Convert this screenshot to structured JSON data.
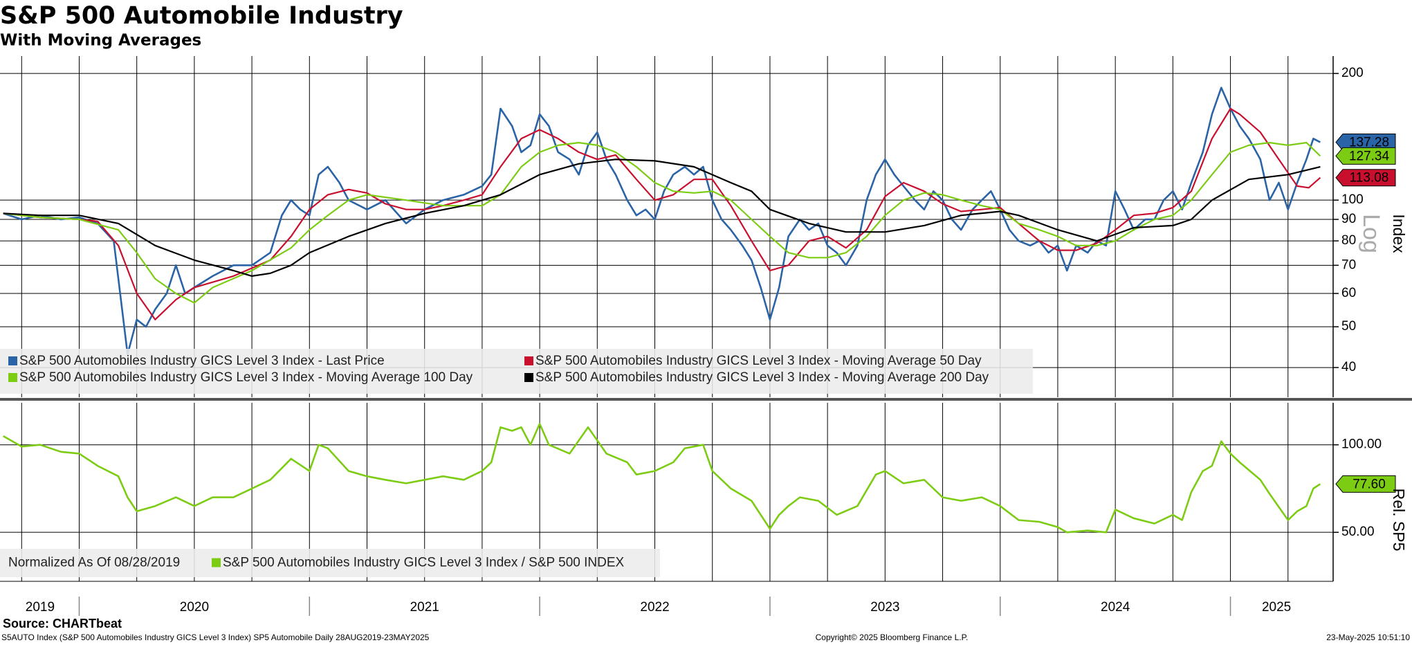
{
  "chart_data": [
    {
      "type": "line",
      "title": "S&P 500 Automobile Industry",
      "subtitle": "With Moving Averages",
      "y_label": "Index",
      "scale_label": "Log",
      "log_scale": true,
      "grid": true,
      "xlim": [
        2019.656,
        2025.446
      ],
      "x_grid": [
        2019.75,
        2020,
        2020.25,
        2020.5,
        2020.75,
        2021,
        2021.25,
        2021.5,
        2021.75,
        2022,
        2022.25,
        2022.5,
        2022.75,
        2023,
        2023.25,
        2023.5,
        2023.75,
        2024,
        2024.25,
        2024.5,
        2024.75,
        2025,
        2025.25
      ],
      "ylim": [
        34,
        220
      ],
      "yticks": [
        40,
        50,
        60,
        70,
        80,
        90,
        100,
        200
      ],
      "series": [
        {
          "name": "S&P 500 Automobiles Industry GICS Level 3 Index - Last Price",
          "color": "#2a64a6",
          "last_label": "137.28",
          "tag_text": "#ffffff",
          "x": [
            2019.67,
            2019.75,
            2019.83,
            2019.92,
            2020.0,
            2020.08,
            2020.15,
            2020.17,
            2020.21,
            2020.25,
            2020.29,
            2020.33,
            2020.38,
            2020.42,
            2020.46,
            2020.5,
            2020.58,
            2020.67,
            2020.75,
            2020.83,
            2020.88,
            2020.92,
            2020.96,
            2021.0,
            2021.04,
            2021.08,
            2021.13,
            2021.17,
            2021.25,
            2021.33,
            2021.42,
            2021.5,
            2021.58,
            2021.67,
            2021.75,
            2021.79,
            2021.83,
            2021.88,
            2021.92,
            2021.96,
            2022.0,
            2022.04,
            2022.08,
            2022.13,
            2022.17,
            2022.21,
            2022.25,
            2022.29,
            2022.33,
            2022.38,
            2022.42,
            2022.46,
            2022.5,
            2022.54,
            2022.58,
            2022.63,
            2022.67,
            2022.71,
            2022.75,
            2022.79,
            2022.83,
            2022.88,
            2022.92,
            2022.96,
            2023.0,
            2023.04,
            2023.08,
            2023.13,
            2023.17,
            2023.21,
            2023.25,
            2023.29,
            2023.33,
            2023.38,
            2023.42,
            2023.46,
            2023.5,
            2023.54,
            2023.58,
            2023.63,
            2023.67,
            2023.71,
            2023.75,
            2023.79,
            2023.83,
            2023.88,
            2023.92,
            2023.96,
            2024.0,
            2024.04,
            2024.08,
            2024.13,
            2024.17,
            2024.21,
            2024.25,
            2024.29,
            2024.33,
            2024.38,
            2024.42,
            2024.46,
            2024.5,
            2024.54,
            2024.58,
            2024.63,
            2024.67,
            2024.71,
            2024.75,
            2024.79,
            2024.83,
            2024.88,
            2024.92,
            2024.96,
            2025.0,
            2025.04,
            2025.08,
            2025.13,
            2025.17,
            2025.21,
            2025.25,
            2025.29,
            2025.33,
            2025.36,
            2025.39
          ],
          "values": [
            93,
            90,
            92,
            90,
            91,
            88,
            80,
            65,
            43,
            52,
            50,
            55,
            60,
            70,
            60,
            62,
            66,
            70,
            70,
            75,
            92,
            100,
            95,
            92,
            115,
            120,
            110,
            100,
            95,
            100,
            88,
            95,
            100,
            103,
            108,
            115,
            165,
            150,
            130,
            135,
            160,
            150,
            130,
            125,
            115,
            135,
            145,
            125,
            115,
            100,
            92,
            95,
            90,
            105,
            115,
            120,
            115,
            120,
            100,
            90,
            85,
            78,
            72,
            62,
            52,
            62,
            82,
            90,
            85,
            88,
            78,
            75,
            70,
            78,
            100,
            115,
            125,
            115,
            108,
            100,
            95,
            105,
            100,
            90,
            85,
            95,
            100,
            105,
            95,
            85,
            80,
            78,
            80,
            75,
            78,
            68,
            78,
            75,
            80,
            78,
            105,
            95,
            85,
            90,
            90,
            100,
            105,
            95,
            110,
            130,
            160,
            185,
            165,
            150,
            140,
            125,
            100,
            110,
            95,
            110,
            125,
            140,
            137.28
          ]
        },
        {
          "name": "S&P 500 Automobiles Industry GICS Level 3 Index - Moving Average 50 Day",
          "color": "#c8102e",
          "last_label": "113.08",
          "tag_text": "#ffffff",
          "x": [
            2019.67,
            2019.83,
            2020.0,
            2020.08,
            2020.17,
            2020.25,
            2020.33,
            2020.42,
            2020.5,
            2020.67,
            2020.83,
            2020.92,
            2021.0,
            2021.08,
            2021.17,
            2021.25,
            2021.33,
            2021.42,
            2021.5,
            2021.58,
            2021.67,
            2021.75,
            2021.83,
            2021.92,
            2022.0,
            2022.08,
            2022.17,
            2022.25,
            2022.33,
            2022.42,
            2022.5,
            2022.58,
            2022.67,
            2022.75,
            2022.83,
            2022.92,
            2023.0,
            2023.08,
            2023.17,
            2023.25,
            2023.33,
            2023.42,
            2023.5,
            2023.58,
            2023.67,
            2023.75,
            2023.83,
            2023.92,
            2024.0,
            2024.08,
            2024.17,
            2024.25,
            2024.33,
            2024.42,
            2024.5,
            2024.58,
            2024.67,
            2024.75,
            2024.83,
            2024.92,
            2025.0,
            2025.04,
            2025.13,
            2025.21,
            2025.29,
            2025.34,
            2025.39
          ],
          "values": [
            93,
            91,
            90,
            89,
            78,
            60,
            52,
            58,
            62,
            66,
            72,
            82,
            95,
            103,
            106,
            104,
            98,
            95,
            95,
            97,
            100,
            103,
            120,
            140,
            147,
            140,
            130,
            125,
            128,
            112,
            100,
            103,
            112,
            112,
            97,
            80,
            68,
            70,
            80,
            82,
            77,
            85,
            102,
            110,
            105,
            98,
            94,
            95,
            96,
            88,
            80,
            76,
            76,
            79,
            85,
            92,
            93,
            96,
            105,
            140,
            165,
            160,
            145,
            125,
            108,
            107,
            113.08
          ]
        },
        {
          "name": "S&P 500 Automobiles Industry GICS Level 3 Index - Moving Average 100 Day",
          "color": "#7dcc14",
          "last_label": "127.34",
          "tag_text": "#000000",
          "x": [
            2019.67,
            2019.83,
            2020.0,
            2020.17,
            2020.25,
            2020.33,
            2020.42,
            2020.5,
            2020.58,
            2020.75,
            2020.92,
            2021.0,
            2021.08,
            2021.17,
            2021.25,
            2021.42,
            2021.58,
            2021.75,
            2021.83,
            2021.92,
            2022.0,
            2022.08,
            2022.17,
            2022.25,
            2022.33,
            2022.42,
            2022.5,
            2022.58,
            2022.67,
            2022.75,
            2022.83,
            2022.92,
            2023.0,
            2023.08,
            2023.17,
            2023.25,
            2023.33,
            2023.42,
            2023.5,
            2023.58,
            2023.67,
            2023.75,
            2023.83,
            2023.92,
            2024.0,
            2024.08,
            2024.17,
            2024.25,
            2024.33,
            2024.42,
            2024.5,
            2024.58,
            2024.67,
            2024.75,
            2024.83,
            2024.92,
            2025.0,
            2025.08,
            2025.17,
            2025.25,
            2025.33,
            2025.39
          ],
          "values": [
            93,
            91,
            90,
            85,
            75,
            65,
            60,
            57,
            62,
            68,
            77,
            85,
            92,
            100,
            103,
            100,
            97,
            97,
            103,
            120,
            130,
            135,
            137,
            135,
            130,
            120,
            110,
            105,
            104,
            105,
            100,
            90,
            82,
            75,
            73,
            73,
            75,
            82,
            92,
            100,
            104,
            103,
            100,
            97,
            95,
            88,
            85,
            82,
            78,
            78,
            80,
            85,
            90,
            92,
            100,
            115,
            130,
            135,
            137,
            135,
            137,
            127.34
          ]
        },
        {
          "name": "S&P 500 Automobiles Industry GICS Level 3 Index - Moving Average 200 Day",
          "color": "#000000",
          "x": [
            2019.67,
            2019.83,
            2020.0,
            2020.17,
            2020.33,
            2020.5,
            2020.67,
            2020.75,
            2020.83,
            2020.92,
            2021.0,
            2021.17,
            2021.33,
            2021.5,
            2021.67,
            2021.83,
            2022.0,
            2022.17,
            2022.33,
            2022.5,
            2022.67,
            2022.83,
            2022.92,
            2023.0,
            2023.17,
            2023.33,
            2023.5,
            2023.67,
            2023.83,
            2024.0,
            2024.08,
            2024.25,
            2024.42,
            2024.58,
            2024.75,
            2024.83,
            2024.92,
            2025.08,
            2025.25,
            2025.39
          ],
          "values": [
            93,
            92,
            92,
            88,
            78,
            72,
            68,
            66,
            67,
            70,
            75,
            82,
            88,
            93,
            97,
            103,
            115,
            122,
            125,
            124,
            120,
            110,
            105,
            95,
            88,
            84,
            84,
            87,
            92,
            94,
            92,
            85,
            80,
            86,
            87,
            90,
            100,
            112,
            115,
            120
          ]
        }
      ]
    },
    {
      "type": "line",
      "y_label": "Rel. SP5",
      "note": "Normalized As Of 08/28/2019",
      "log_scale": false,
      "grid": true,
      "xlim": [
        2019.656,
        2025.446
      ],
      "x_grid": [
        2019.75,
        2020,
        2020.25,
        2020.5,
        2020.75,
        2021,
        2021.25,
        2021.5,
        2021.75,
        2022,
        2022.25,
        2022.5,
        2022.75,
        2023,
        2023.25,
        2023.5,
        2023.75,
        2024,
        2024.25,
        2024.5,
        2024.75,
        2025,
        2025.25
      ],
      "xticks": [
        {
          "value": 2019.83,
          "label": "2019"
        },
        {
          "value": 2020.5,
          "label": "2020"
        },
        {
          "value": 2021.5,
          "label": "2021"
        },
        {
          "value": 2022.5,
          "label": "2022"
        },
        {
          "value": 2023.5,
          "label": "2023"
        },
        {
          "value": 2024.5,
          "label": "2024"
        },
        {
          "value": 2025.2,
          "label": "2025"
        }
      ],
      "year_boundaries": [
        2020,
        2021,
        2022,
        2023,
        2024,
        2025
      ],
      "ylim": [
        22,
        124
      ],
      "yticks": [
        {
          "value": 50,
          "label": "50.00"
        },
        {
          "value": 100,
          "label": "100.00"
        }
      ],
      "series": [
        {
          "name": "S&P 500 Automobiles Industry GICS Level 3 Index / S&P 500 INDEX",
          "color": "#7dcc14",
          "last_label": "77.60",
          "tag_text": "#000000",
          "x": [
            2019.67,
            2019.75,
            2019.83,
            2019.92,
            2020.0,
            2020.08,
            2020.17,
            2020.21,
            2020.25,
            2020.33,
            2020.42,
            2020.5,
            2020.58,
            2020.67,
            2020.75,
            2020.83,
            2020.92,
            2021.0,
            2021.04,
            2021.08,
            2021.17,
            2021.25,
            2021.33,
            2021.42,
            2021.5,
            2021.58,
            2021.67,
            2021.75,
            2021.79,
            2021.83,
            2021.88,
            2021.92,
            2021.96,
            2022.0,
            2022.04,
            2022.13,
            2022.21,
            2022.29,
            2022.38,
            2022.42,
            2022.5,
            2022.58,
            2022.63,
            2022.71,
            2022.75,
            2022.83,
            2022.92,
            2023.0,
            2023.04,
            2023.08,
            2023.13,
            2023.21,
            2023.29,
            2023.38,
            2023.46,
            2023.5,
            2023.58,
            2023.67,
            2023.75,
            2023.83,
            2023.92,
            2024.0,
            2024.08,
            2024.17,
            2024.25,
            2024.29,
            2024.38,
            2024.46,
            2024.5,
            2024.58,
            2024.67,
            2024.75,
            2024.79,
            2024.83,
            2024.88,
            2024.92,
            2024.96,
            2025.0,
            2025.04,
            2025.13,
            2025.17,
            2025.25,
            2025.29,
            2025.33,
            2025.36,
            2025.39
          ],
          "values": [
            105,
            99,
            100,
            96,
            95,
            88,
            82,
            70,
            62,
            65,
            70,
            65,
            70,
            70,
            75,
            80,
            92,
            85,
            100,
            98,
            85,
            82,
            80,
            78,
            80,
            82,
            80,
            85,
            90,
            110,
            108,
            110,
            100,
            112,
            100,
            95,
            110,
            95,
            90,
            83,
            85,
            90,
            98,
            100,
            85,
            75,
            68,
            52,
            60,
            65,
            70,
            68,
            60,
            65,
            83,
            85,
            78,
            80,
            70,
            68,
            70,
            65,
            57,
            56,
            53,
            50,
            51,
            50,
            63,
            58,
            55,
            60,
            57,
            73,
            85,
            88,
            102,
            95,
            90,
            80,
            72,
            57,
            62,
            65,
            75,
            77.6
          ]
        }
      ]
    }
  ],
  "footer": {
    "source": "Source: CHARTbeat",
    "info": "S5AUTO Index (S&P 500 Automobiles Industry GICS Level 3 Index) SP5 Automobile  Daily 28AUG2019-23MAY2025",
    "copyright": "Copyright© 2025 Bloomberg Finance L.P.",
    "timestamp": "23-May-2025 10:51:10"
  }
}
